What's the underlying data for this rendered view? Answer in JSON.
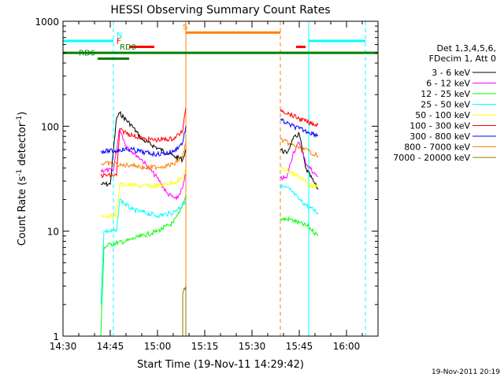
{
  "chart_data": {
    "type": "line",
    "title": "HESSI Observing Summary Count Rates",
    "xlabel": "Start Time (19-Nov-11 14:29:42)",
    "ylabel_main": "Count Rate (s",
    "ylabel_sup1": "-1",
    "ylabel_mid": " detector",
    "ylabel_sup2": "-1",
    "ylabel_end": ")",
    "y_scale": "log",
    "ylim": [
      1,
      1000
    ],
    "xlim": [
      "14:30",
      "16:10"
    ],
    "x_ticks": [
      "14:30",
      "14:45",
      "15:00",
      "15:15",
      "15:30",
      "15:45",
      "16:00"
    ],
    "y_ticks": [
      {
        "label": "1",
        "value": 1
      },
      {
        "label": "10",
        "value": 10
      },
      {
        "label": "100",
        "value": 100
      },
      {
        "label": "1000",
        "value": 1000
      }
    ],
    "legend_title_1": "Det 1,3,4,5,6,",
    "legend_title_2": "FDecim 1, Att 0",
    "legend_position": "right",
    "timestamp": "19-Nov-2011 20:19",
    "series": [
      {
        "name": "3 - 6 keV",
        "color": "#000000",
        "segments": [
          [
            [
              "14:42",
              28
            ],
            [
              "14:45",
              28
            ],
            [
              "14:47",
              120
            ],
            [
              "14:48",
              133
            ],
            [
              "14:52",
              100
            ],
            [
              "14:55",
              75
            ],
            [
              "15:00",
              62
            ],
            [
              "15:05",
              52
            ],
            [
              "15:08",
              48
            ],
            [
              "15:09",
              60
            ]
          ],
          [
            [
              "15:39",
              60
            ],
            [
              "15:41",
              55
            ],
            [
              "15:43",
              75
            ],
            [
              "15:45",
              85
            ],
            [
              "15:47",
              40
            ],
            [
              "15:50",
              28
            ],
            [
              "15:51",
              25
            ]
          ]
        ]
      },
      {
        "name": "6 - 12 keV",
        "color": "#ff00ff",
        "segments": [
          [
            [
              "14:42",
              38
            ],
            [
              "14:46",
              38
            ],
            [
              "14:48",
              95
            ],
            [
              "14:50",
              65
            ],
            [
              "14:55",
              48
            ],
            [
              "15:00",
              32
            ],
            [
              "15:03",
              23
            ],
            [
              "15:06",
              20
            ],
            [
              "15:08",
              26
            ],
            [
              "15:09",
              35
            ]
          ],
          [
            [
              "15:39",
              32
            ],
            [
              "15:41",
              32
            ],
            [
              "15:43",
              55
            ],
            [
              "15:45",
              70
            ],
            [
              "15:47",
              45
            ],
            [
              "15:50",
              35
            ],
            [
              "15:51",
              33
            ]
          ]
        ]
      },
      {
        "name": "12 - 25 keV",
        "color": "#00ff00",
        "segments": [
          [
            [
              "14:42",
              1
            ],
            [
              "14:43",
              7
            ],
            [
              "14:45",
              7.5
            ],
            [
              "14:50",
              8
            ],
            [
              "14:55",
              9
            ],
            [
              "15:00",
              10
            ],
            [
              "15:05",
              12
            ],
            [
              "15:07",
              15
            ],
            [
              "15:09",
              22
            ]
          ],
          [
            [
              "15:39",
              13
            ],
            [
              "15:42",
              13
            ],
            [
              "15:45",
              12
            ],
            [
              "15:48",
              11
            ],
            [
              "15:51",
              9
            ]
          ]
        ]
      },
      {
        "name": "25 - 50 keV",
        "color": "#00ffff",
        "segments": [
          [
            [
              "14:42",
              2
            ],
            [
              "14:43",
              10
            ],
            [
              "14:47",
              10
            ],
            [
              "14:48",
              20
            ],
            [
              "14:52",
              16
            ],
            [
              "14:56",
              15
            ],
            [
              "15:00",
              14
            ],
            [
              "15:05",
              15
            ],
            [
              "15:09",
              19
            ]
          ],
          [
            [
              "15:39",
              27
            ],
            [
              "15:42",
              25
            ],
            [
              "15:45",
              20
            ],
            [
              "15:48",
              17
            ],
            [
              "15:51",
              15
            ]
          ]
        ]
      },
      {
        "name": "50 - 100 keV",
        "color": "#ffff00",
        "segments": [
          [
            [
              "14:42",
              14
            ],
            [
              "14:47",
              14
            ],
            [
              "14:48",
              28
            ],
            [
              "14:55",
              27
            ],
            [
              "15:00",
              27
            ],
            [
              "15:05",
              29
            ],
            [
              "15:08",
              32
            ],
            [
              "15:09",
              40
            ]
          ],
          [
            [
              "15:39",
              40
            ],
            [
              "15:42",
              37
            ],
            [
              "15:45",
              33
            ],
            [
              "15:48",
              28
            ],
            [
              "15:51",
              26
            ]
          ]
        ]
      },
      {
        "name": "100 - 300 keV",
        "color": "#ff0000",
        "segments": [
          [
            [
              "14:42",
              34
            ],
            [
              "14:47",
              34
            ],
            [
              "14:48",
              92
            ],
            [
              "14:52",
              82
            ],
            [
              "14:56",
              75
            ],
            [
              "15:00",
              74
            ],
            [
              "15:05",
              76
            ],
            [
              "15:08",
              90
            ],
            [
              "15:09",
              150
            ]
          ],
          [
            [
              "15:39",
              145
            ],
            [
              "15:42",
              130
            ],
            [
              "15:45",
              118
            ],
            [
              "15:48",
              108
            ],
            [
              "15:51",
              103
            ]
          ]
        ]
      },
      {
        "name": "300 - 800 keV",
        "color": "#0000ff",
        "segments": [
          [
            [
              "14:42",
              58
            ],
            [
              "14:47",
              58
            ],
            [
              "14:48",
              60
            ],
            [
              "14:52",
              60
            ],
            [
              "14:56",
              56
            ],
            [
              "15:00",
              54
            ],
            [
              "15:05",
              57
            ],
            [
              "15:08",
              70
            ],
            [
              "15:09",
              100
            ]
          ],
          [
            [
              "15:39",
              115
            ],
            [
              "15:42",
              103
            ],
            [
              "15:45",
              95
            ],
            [
              "15:48",
              88
            ],
            [
              "15:51",
              82
            ]
          ]
        ]
      },
      {
        "name": "800 - 7000 keV",
        "color": "#ff8000",
        "segments": [
          [
            [
              "14:42",
              44
            ],
            [
              "14:47",
              44
            ],
            [
              "14:48",
              42
            ],
            [
              "14:52",
              43
            ],
            [
              "14:56",
              40
            ],
            [
              "15:00",
              41
            ],
            [
              "15:05",
              43
            ],
            [
              "15:08",
              52
            ],
            [
              "15:09",
              70
            ]
          ],
          [
            [
              "15:39",
              75
            ],
            [
              "15:42",
              68
            ],
            [
              "15:45",
              62
            ],
            [
              "15:48",
              58
            ],
            [
              "15:51",
              52
            ]
          ]
        ]
      },
      {
        "name": "7000 - 20000 keV",
        "color": "#808000",
        "segments": [
          [
            [
              "15:08",
              1
            ],
            [
              "15:08",
              2.5
            ],
            [
              "15:09",
              3
            ],
            [
              "15:09",
              1
            ]
          ]
        ]
      }
    ],
    "flags": [
      {
        "label": "N",
        "color": "#00ffff",
        "y": 650,
        "label_at": "14:47",
        "ranges": [
          [
            "14:30",
            "14:46"
          ],
          [
            "15:48",
            "16:06"
          ]
        ]
      },
      {
        "label": "S",
        "color": "#ff8000",
        "y": 780,
        "label_at": "15:08",
        "ranges": [
          [
            "15:09",
            "15:39"
          ]
        ]
      },
      {
        "label": "F",
        "color": "#ff0000",
        "y": 570,
        "label_at": "14:47",
        "ranges": [
          [
            "14:51",
            "14:59"
          ],
          [
            "15:44",
            "15:47"
          ]
        ]
      },
      {
        "label": "RD0",
        "color": "#008000",
        "y": 500,
        "label_at": "14:48",
        "ranges": [
          [
            "14:30",
            "16:10"
          ]
        ]
      },
      {
        "label": "RD6",
        "color": "#008000",
        "y": 440,
        "label_at": "14:35",
        "ranges": [
          [
            "14:41",
            "14:51"
          ]
        ]
      }
    ],
    "vertical_markers": [
      {
        "time": "14:30",
        "color": "#00ffff",
        "style": "dashed"
      },
      {
        "time": "14:46",
        "color": "#00ffff",
        "style": "dashed"
      },
      {
        "time": "15:09",
        "color": "#ff8000",
        "style": "solid"
      },
      {
        "time": "15:39",
        "color": "#ff8000",
        "style": "dashed"
      },
      {
        "time": "15:48",
        "color": "#00ffff",
        "style": "solid"
      },
      {
        "time": "16:06",
        "color": "#00ffff",
        "style": "dashed"
      }
    ]
  }
}
